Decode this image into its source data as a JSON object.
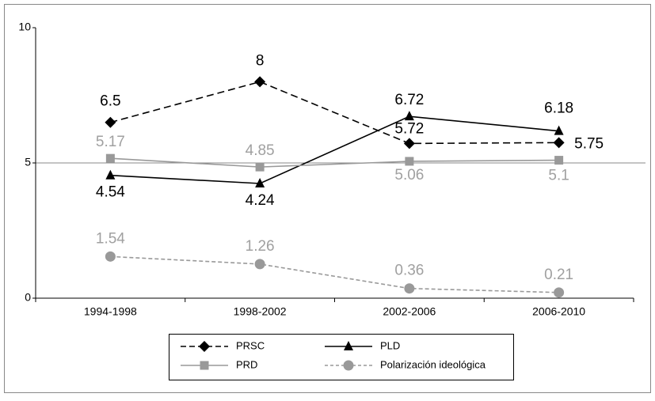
{
  "chart_data": {
    "type": "line",
    "categories": [
      "1994-1998",
      "1998-2002",
      "2002-2006",
      "2006-2010"
    ],
    "ylim": [
      0,
      10
    ],
    "yticks": [
      0,
      5,
      10
    ],
    "series": [
      {
        "name": "PRSC",
        "color": "#000000",
        "line_style": "dashed",
        "marker": "diamond",
        "values": [
          6.5,
          8,
          5.72,
          5.75
        ]
      },
      {
        "name": "PLD",
        "color": "#000000",
        "line_style": "solid",
        "marker": "triangle",
        "values": [
          4.54,
          4.24,
          6.72,
          6.18
        ]
      },
      {
        "name": "PRD",
        "color": "#999999",
        "line_style": "solid",
        "marker": "square",
        "values": [
          5.17,
          4.85,
          5.06,
          5.1
        ]
      },
      {
        "name": "Polarización ideológica",
        "color": "#999999",
        "line_style": "dashed",
        "marker": "circle",
        "values": [
          1.54,
          1.26,
          0.36,
          0.21
        ]
      }
    ]
  }
}
